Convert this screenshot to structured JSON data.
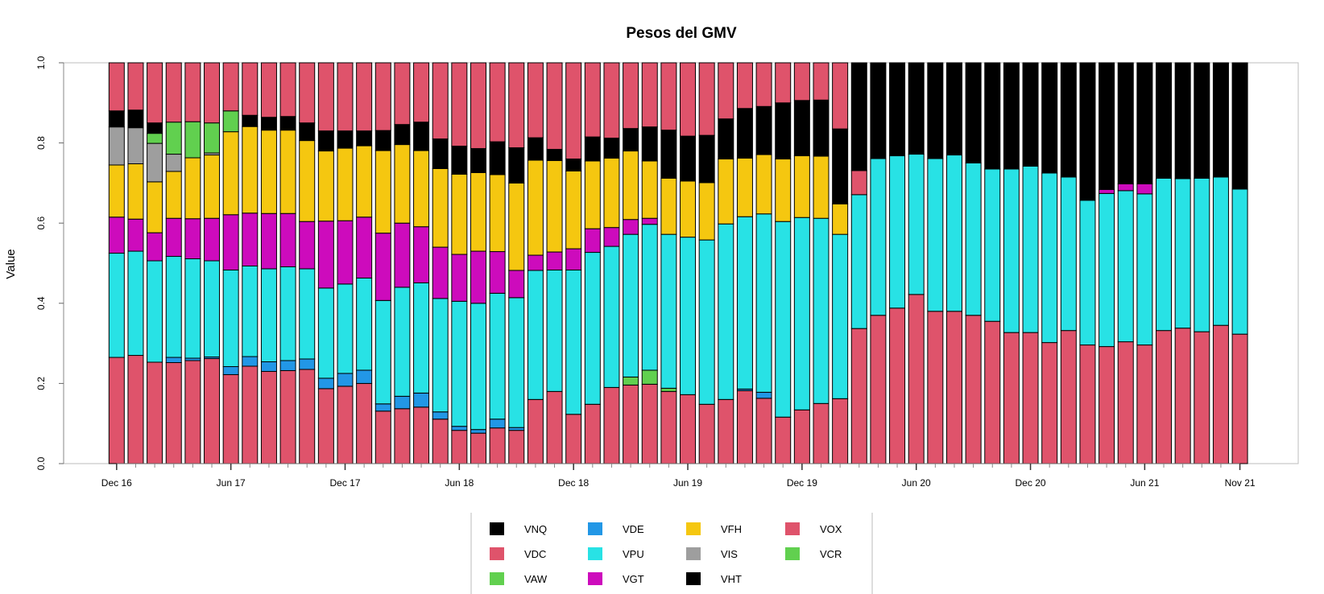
{
  "chart_data": {
    "type": "bar",
    "stacked": true,
    "title": "Pesos del GMV",
    "ylabel": "Value",
    "xlabel": "",
    "ylim": [
      0,
      1
    ],
    "yticks": [
      "0.0",
      "0.2",
      "0.4",
      "0.6",
      "0.8",
      "1.0"
    ],
    "x_tick_labels": [
      {
        "index": 0,
        "label": "Dec 16"
      },
      {
        "index": 6,
        "label": "Jun 17"
      },
      {
        "index": 12,
        "label": "Dec 17"
      },
      {
        "index": 18,
        "label": "Jun 18"
      },
      {
        "index": 24,
        "label": "Dec 18"
      },
      {
        "index": 30,
        "label": "Jun 19"
      },
      {
        "index": 36,
        "label": "Dec 19"
      },
      {
        "index": 42,
        "label": "Jun 20"
      },
      {
        "index": 48,
        "label": "Dec 20"
      },
      {
        "index": 54,
        "label": "Jun 21"
      },
      {
        "index": 59,
        "label": "Nov 21"
      }
    ],
    "legend_position": "bottom",
    "legend": [
      {
        "name": "VNQ",
        "color": "#000000"
      },
      {
        "name": "VDE",
        "color": "#2297E6"
      },
      {
        "name": "VFH",
        "color": "#F5C710"
      },
      {
        "name": "VOX",
        "color": "#DF536B"
      },
      {
        "name": "VDC",
        "color": "#DF536B"
      },
      {
        "name": "VPU",
        "color": "#28E2E5"
      },
      {
        "name": "VIS",
        "color": "#9E9E9E"
      },
      {
        "name": "VCR",
        "color": "#61D04F"
      },
      {
        "name": "VAW",
        "color": "#61D04F"
      },
      {
        "name": "VGT",
        "color": "#CD0BBC"
      },
      {
        "name": "VHT",
        "color": "#000000"
      }
    ],
    "stack_order": [
      "VDC",
      "VDE",
      "VAW",
      "VPU",
      "VGT",
      "VFH",
      "VIS",
      "VCR",
      "VNQ",
      "VOX",
      "VHT"
    ],
    "bars": [
      {
        "VDC": 0.265,
        "VPU": 0.26,
        "VGT": 0.09,
        "VFH": 0.13,
        "VIS": 0.095,
        "VNQ": 0.04,
        "VOX": 0.12
      },
      {
        "VDC": 0.27,
        "VPU": 0.26,
        "VGT": 0.08,
        "VFH": 0.138,
        "VIS": 0.09,
        "VNQ": 0.044,
        "VOX": 0.118
      },
      {
        "VDC": 0.253,
        "VPU": 0.253,
        "VGT": 0.07,
        "VFH": 0.127,
        "VIS": 0.096,
        "VNQ": 0.026,
        "VOX": 0.15,
        "VCR": 0.025
      },
      {
        "VDC": 0.252,
        "VDE": 0.013,
        "VPU": 0.252,
        "VGT": 0.095,
        "VFH": 0.117,
        "VIS": 0.043,
        "VOX": 0.148,
        "VCR": 0.08
      },
      {
        "VDC": 0.257,
        "VDE": 0.006,
        "VPU": 0.248,
        "VGT": 0.1,
        "VFH": 0.152,
        "VOX": 0.147,
        "VCR": 0.09
      },
      {
        "VDC": 0.262,
        "VDE": 0.004,
        "VPU": 0.24,
        "VGT": 0.106,
        "VFH": 0.158,
        "VIS": 0.005,
        "VOX": 0.15,
        "VCR": 0.075
      },
      {
        "VDC": 0.222,
        "VDE": 0.02,
        "VPU": 0.241,
        "VGT": 0.138,
        "VFH": 0.207,
        "VOX": 0.12,
        "VCR": 0.052
      },
      {
        "VDC": 0.243,
        "VDE": 0.024,
        "VPU": 0.226,
        "VGT": 0.132,
        "VFH": 0.216,
        "VNQ": 0.028,
        "VOX": 0.131
      },
      {
        "VDC": 0.23,
        "VDE": 0.024,
        "VPU": 0.232,
        "VGT": 0.138,
        "VFH": 0.208,
        "VNQ": 0.032,
        "VOX": 0.136
      },
      {
        "VDC": 0.232,
        "VDE": 0.025,
        "VPU": 0.234,
        "VGT": 0.133,
        "VFH": 0.208,
        "VNQ": 0.034,
        "VOX": 0.134
      },
      {
        "VDC": 0.235,
        "VDE": 0.026,
        "VPU": 0.225,
        "VGT": 0.118,
        "VFH": 0.202,
        "VNQ": 0.044,
        "VOX": 0.15
      },
      {
        "VDC": 0.187,
        "VDE": 0.026,
        "VPU": 0.225,
        "VGT": 0.167,
        "VFH": 0.175,
        "VNQ": 0.05,
        "VOX": 0.17
      },
      {
        "VDC": 0.193,
        "VDE": 0.032,
        "VPU": 0.223,
        "VGT": 0.158,
        "VFH": 0.181,
        "VNQ": 0.043,
        "VOX": 0.17
      },
      {
        "VDC": 0.2,
        "VDE": 0.033,
        "VPU": 0.23,
        "VGT": 0.152,
        "VFH": 0.178,
        "VNQ": 0.037,
        "VOX": 0.17
      },
      {
        "VDC": 0.131,
        "VDE": 0.018,
        "VPU": 0.258,
        "VGT": 0.168,
        "VFH": 0.206,
        "VNQ": 0.05,
        "VOX": 0.169
      },
      {
        "VDC": 0.137,
        "VDE": 0.031,
        "VPU": 0.272,
        "VGT": 0.16,
        "VFH": 0.196,
        "VNQ": 0.05,
        "VOX": 0.154
      },
      {
        "VDC": 0.141,
        "VDE": 0.035,
        "VPU": 0.275,
        "VGT": 0.14,
        "VFH": 0.19,
        "VNQ": 0.071,
        "VOX": 0.148
      },
      {
        "VDC": 0.111,
        "VDE": 0.018,
        "VPU": 0.283,
        "VGT": 0.128,
        "VFH": 0.196,
        "VNQ": 0.074,
        "VOX": 0.19
      },
      {
        "VDC": 0.083,
        "VDE": 0.01,
        "VPU": 0.312,
        "VGT": 0.117,
        "VFH": 0.2,
        "VNQ": 0.07,
        "VOX": 0.208
      },
      {
        "VDC": 0.076,
        "VDE": 0.009,
        "VPU": 0.315,
        "VGT": 0.13,
        "VFH": 0.196,
        "VNQ": 0.06,
        "VOX": 0.214
      },
      {
        "VDC": 0.089,
        "VDE": 0.022,
        "VPU": 0.314,
        "VGT": 0.104,
        "VFH": 0.192,
        "VNQ": 0.082,
        "VOX": 0.197
      },
      {
        "VDC": 0.083,
        "VDE": 0.007,
        "VPU": 0.324,
        "VGT": 0.068,
        "VFH": 0.218,
        "VNQ": 0.088,
        "VOX": 0.212
      },
      {
        "VDC": 0.16,
        "VPU": 0.322,
        "VGT": 0.038,
        "VFH": 0.237,
        "VNQ": 0.056,
        "VOX": 0.187
      },
      {
        "VDC": 0.18,
        "VPU": 0.303,
        "VGT": 0.045,
        "VFH": 0.228,
        "VNQ": 0.028,
        "VOX": 0.216
      },
      {
        "VDC": 0.123,
        "VPU": 0.36,
        "VGT": 0.053,
        "VFH": 0.194,
        "VNQ": 0.03,
        "VOX": 0.24
      },
      {
        "VDC": 0.148,
        "VPU": 0.379,
        "VGT": 0.059,
        "VFH": 0.169,
        "VNQ": 0.06,
        "VOX": 0.185
      },
      {
        "VDC": 0.19,
        "VPU": 0.352,
        "VGT": 0.047,
        "VFH": 0.173,
        "VNQ": 0.05,
        "VOX": 0.188
      },
      {
        "VDC": 0.196,
        "VAW": 0.02,
        "VPU": 0.356,
        "VGT": 0.037,
        "VFH": 0.171,
        "VNQ": 0.056,
        "VOX": 0.164
      },
      {
        "VDC": 0.198,
        "VAW": 0.035,
        "VPU": 0.364,
        "VGT": 0.015,
        "VFH": 0.143,
        "VNQ": 0.085,
        "VOX": 0.16
      },
      {
        "VDC": 0.18,
        "VAW": 0.008,
        "VPU": 0.384,
        "VFH": 0.14,
        "VNQ": 0.12,
        "VOX": 0.168
      },
      {
        "VDC": 0.172,
        "VPU": 0.393,
        "VFH": 0.14,
        "VNQ": 0.112,
        "VOX": 0.183
      },
      {
        "VDC": 0.148,
        "VPU": 0.41,
        "VFH": 0.143,
        "VNQ": 0.118,
        "VOX": 0.181
      },
      {
        "VDC": 0.16,
        "VPU": 0.438,
        "VFH": 0.162,
        "VNQ": 0.1,
        "VOX": 0.14
      },
      {
        "VDC": 0.182,
        "VDE": 0.004,
        "VPU": 0.43,
        "VFH": 0.146,
        "VNQ": 0.124,
        "VOX": 0.114
      },
      {
        "VDC": 0.163,
        "VDE": 0.015,
        "VPU": 0.445,
        "VFH": 0.148,
        "VNQ": 0.12,
        "VOX": 0.109
      },
      {
        "VDC": 0.116,
        "VPU": 0.488,
        "VFH": 0.156,
        "VNQ": 0.14,
        "VOX": 0.1
      },
      {
        "VDC": 0.134,
        "VPU": 0.48,
        "VFH": 0.154,
        "VNQ": 0.138,
        "VOX": 0.094
      },
      {
        "VDC": 0.15,
        "VPU": 0.462,
        "VFH": 0.155,
        "VNQ": 0.14,
        "VOX": 0.093
      },
      {
        "VDC": 0.162,
        "VPU": 0.41,
        "VFH": 0.076,
        "VNQ": 0.187,
        "VOX": 0.165
      },
      {
        "VDC": 0.337,
        "VPU": 0.334,
        "VHT": 0.269,
        "VOX": 0.06
      },
      {
        "VDC": 0.37,
        "VPU": 0.391,
        "VHT": 0.239
      },
      {
        "VDC": 0.388,
        "VPU": 0.38,
        "VHT": 0.232
      },
      {
        "VDC": 0.422,
        "VPU": 0.35,
        "VHT": 0.228
      },
      {
        "VDC": 0.38,
        "VPU": 0.381,
        "VHT": 0.239
      },
      {
        "VDC": 0.38,
        "VPU": 0.39,
        "VHT": 0.23
      },
      {
        "VDC": 0.37,
        "VPU": 0.38,
        "VHT": 0.25
      },
      {
        "VDC": 0.355,
        "VPU": 0.38,
        "VHT": 0.265
      },
      {
        "VDC": 0.327,
        "VPU": 0.408,
        "VHT": 0.265
      },
      {
        "VDC": 0.327,
        "VPU": 0.415,
        "VHT": 0.258
      },
      {
        "VDC": 0.302,
        "VPU": 0.423,
        "VHT": 0.275
      },
      {
        "VDC": 0.332,
        "VPU": 0.383,
        "VHT": 0.285
      },
      {
        "VDC": 0.296,
        "VPU": 0.361,
        "VHT": 0.343
      },
      {
        "VDC": 0.292,
        "VPU": 0.382,
        "VGT": 0.01,
        "VHT": 0.316
      },
      {
        "VDC": 0.304,
        "VPU": 0.377,
        "VGT": 0.017,
        "VHT": 0.302
      },
      {
        "VDC": 0.296,
        "VPU": 0.377,
        "VGT": 0.025,
        "VHT": 0.302
      },
      {
        "VDC": 0.332,
        "VPU": 0.38,
        "VHT": 0.288
      },
      {
        "VDC": 0.338,
        "VPU": 0.373,
        "VHT": 0.289
      },
      {
        "VDC": 0.329,
        "VPU": 0.383,
        "VHT": 0.288
      },
      {
        "VDC": 0.345,
        "VPU": 0.37,
        "VHT": 0.285
      },
      {
        "VDC": 0.323,
        "VPU": 0.362,
        "VHT": 0.315
      }
    ]
  }
}
